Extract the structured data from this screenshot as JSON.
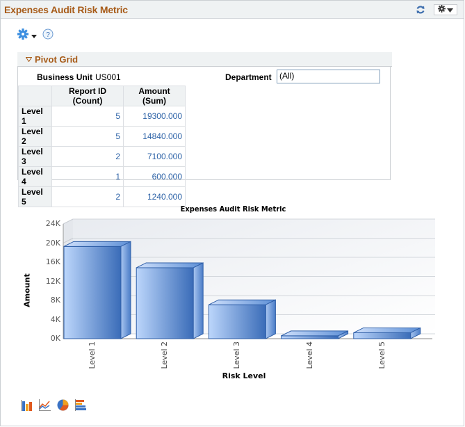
{
  "pagelet": {
    "title": "Expenses Audit Risk Metric",
    "header_icons": [
      "refresh-icon",
      "gear-icon",
      "chevron-down-icon"
    ]
  },
  "toolbar": {
    "icons": [
      "gear-icon",
      "dropdown-arrow-icon",
      "help-icon"
    ]
  },
  "pivot_grid": {
    "title": "Pivot Grid",
    "filters": {
      "business_unit_label": "Business Unit",
      "business_unit_value": "US001",
      "department_label": "Department",
      "department_value": "(All)"
    },
    "columns": [
      "",
      "Report ID (Count)",
      "Amount (Sum)"
    ],
    "rows": [
      {
        "label": "Level 1",
        "count": "5",
        "amount": "19300.000"
      },
      {
        "label": "Level 2",
        "count": "5",
        "amount": "14840.000"
      },
      {
        "label": "Level 3",
        "count": "2",
        "amount": "7100.000"
      },
      {
        "label": "Level 4",
        "count": "1",
        "amount": "600.000"
      },
      {
        "label": "Level 5",
        "count": "2",
        "amount": "1240.000"
      }
    ]
  },
  "chart_data": {
    "type": "bar",
    "title": "Expenses Audit Risk Metric",
    "xlabel": "Risk Level",
    "ylabel": "Amount",
    "categories": [
      "Level 1",
      "Level 2",
      "Level 3",
      "Level 4",
      "Level 5"
    ],
    "values": [
      19300,
      14840,
      7100,
      600,
      1240
    ],
    "ylim": [
      0,
      24000
    ],
    "yticks": [
      "0K",
      "4K",
      "8K",
      "12K",
      "16K",
      "20K",
      "24K"
    ],
    "grid": true,
    "style": "3d",
    "bar_color": "#4a7cc7"
  },
  "chart_type_icons": [
    "bar-chart-icon",
    "line-chart-icon",
    "pie-chart-icon",
    "horizontal-bar-chart-icon"
  ]
}
